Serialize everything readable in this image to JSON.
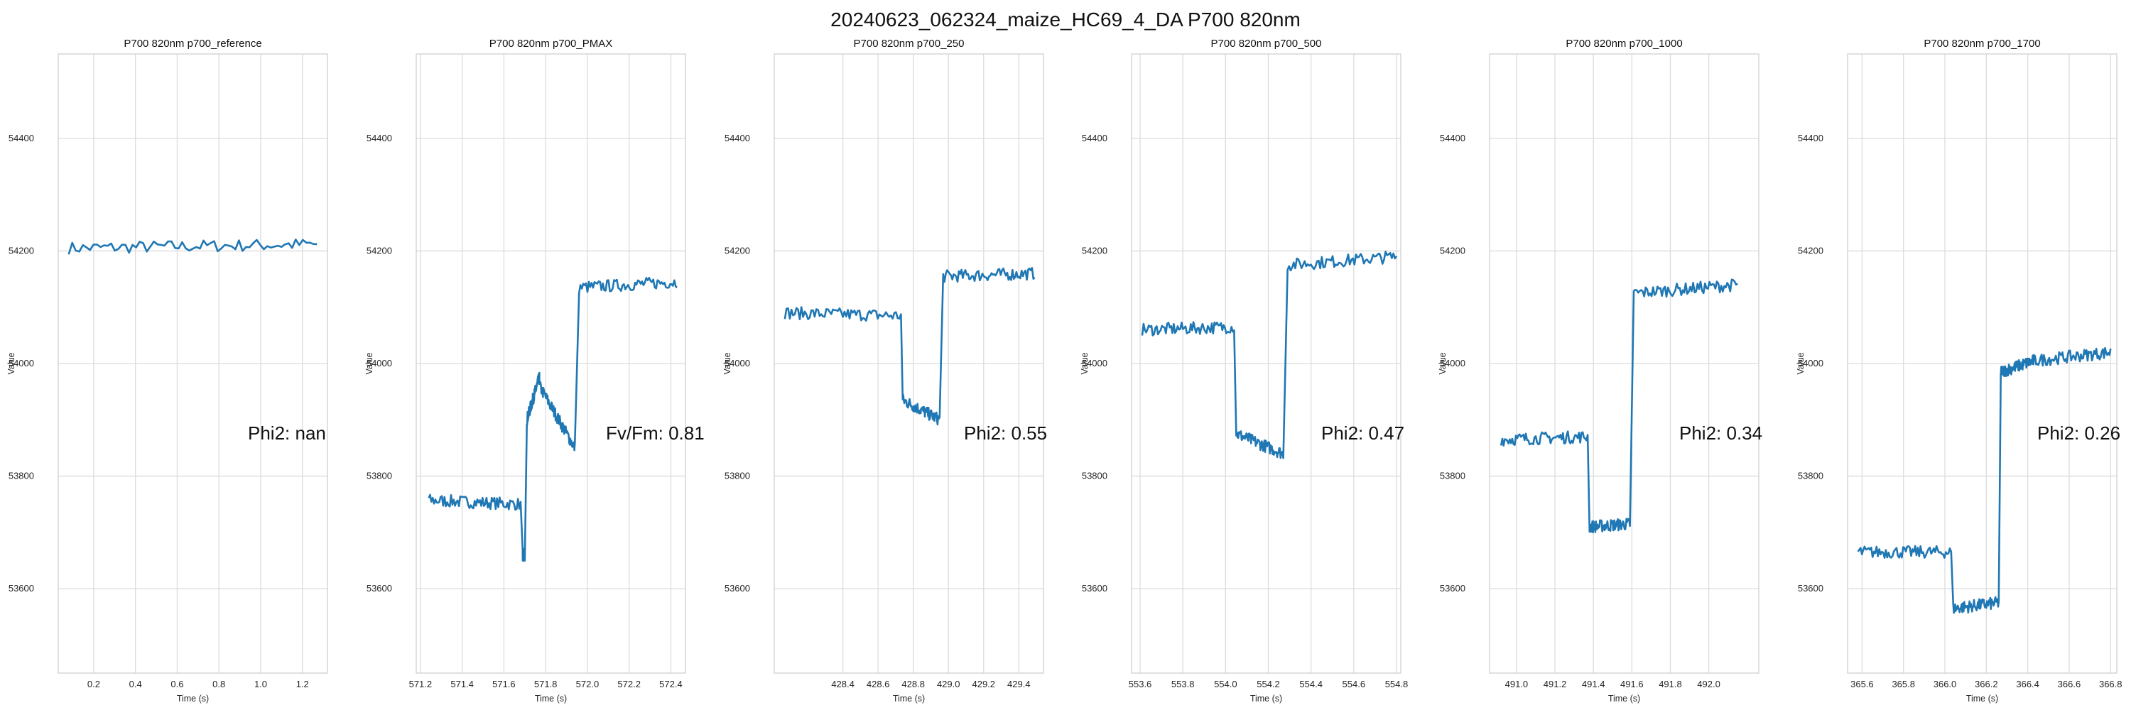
{
  "figure_title": "20240623_062324_maize_HC69_4_DA P700 820nm",
  "colors": {
    "series": "#1f77b4",
    "grid": "#dcdcdc"
  },
  "chart_data": [
    {
      "type": "line",
      "title": "P700 820nm p700_reference",
      "xlabel": "Time (s)",
      "ylabel": "Value",
      "xlim": [
        0.03,
        1.32
      ],
      "ylim": [
        53450,
        54550
      ],
      "xticks": [
        "0.2",
        "0.4",
        "0.6",
        "0.8",
        "1.0",
        "1.2"
      ],
      "yticks": [
        "53600",
        "53800",
        "54000",
        "54200",
        "54400"
      ],
      "annotation": "Phi2: nan",
      "grid": true,
      "segments": [
        {
          "x0": 0.08,
          "x1": 1.27,
          "y0": 54205,
          "y1": 54212
        }
      ]
    },
    {
      "type": "line",
      "title": "P700 820nm p700_PMAX",
      "xlabel": "Time (s)",
      "ylabel": "Value",
      "xlim": [
        571.18,
        572.47
      ],
      "ylim": [
        53450,
        54550
      ],
      "xticks": [
        "571.2",
        "571.4",
        "571.6",
        "571.8",
        "572.0",
        "572.2",
        "572.4"
      ],
      "yticks": [
        "53600",
        "53800",
        "54000",
        "54200",
        "54400"
      ],
      "annotation": "Fv/Fm: 0.81",
      "grid": true,
      "segments": [
        {
          "x0": 571.24,
          "x1": 571.68,
          "y0": 53757,
          "y1": 53750
        },
        {
          "x0": 571.69,
          "x1": 571.7,
          "y0": 53660,
          "y1": 53660
        },
        {
          "x0": 571.71,
          "x1": 571.77,
          "y0": 53900,
          "y1": 53975
        },
        {
          "x0": 571.77,
          "x1": 571.94,
          "y0": 53960,
          "y1": 53850
        },
        {
          "x0": 571.96,
          "x1": 572.43,
          "y0": 54135,
          "y1": 54145
        }
      ]
    },
    {
      "type": "line",
      "title": "P700 820nm p700_250",
      "xlabel": "Time (s)",
      "ylabel": "Value",
      "xlim": [
        428.01,
        429.54
      ],
      "ylim": [
        53450,
        54550
      ],
      "xticks": [
        "428.4",
        "428.6",
        "428.8",
        "429.0",
        "429.2",
        "429.4"
      ],
      "yticks": [
        "53600",
        "53800",
        "54000",
        "54200",
        "54400"
      ],
      "annotation": "Phi2: 0.55",
      "grid": true,
      "segments": [
        {
          "x0": 428.07,
          "x1": 428.73,
          "y0": 54090,
          "y1": 54085
        },
        {
          "x0": 428.74,
          "x1": 428.95,
          "y0": 53935,
          "y1": 53900
        },
        {
          "x0": 428.97,
          "x1": 429.49,
          "y0": 54155,
          "y1": 54160
        }
      ]
    },
    {
      "type": "line",
      "title": "P700 820nm p700_500",
      "xlabel": "Time (s)",
      "ylabel": "Value",
      "xlim": [
        553.56,
        554.82
      ],
      "ylim": [
        53450,
        54550
      ],
      "xticks": [
        "553.6",
        "553.8",
        "554.0",
        "554.2",
        "554.4",
        "554.6",
        "554.8"
      ],
      "yticks": [
        "53600",
        "53800",
        "54000",
        "54200",
        "54400"
      ],
      "annotation": "Phi2: 0.47",
      "grid": true,
      "segments": [
        {
          "x0": 553.61,
          "x1": 554.04,
          "y0": 54060,
          "y1": 54065
        },
        {
          "x0": 554.05,
          "x1": 554.27,
          "y0": 53875,
          "y1": 53840
        },
        {
          "x0": 554.29,
          "x1": 554.8,
          "y0": 54175,
          "y1": 54190
        }
      ]
    },
    {
      "type": "line",
      "title": "P700 820nm p700_1000",
      "xlabel": "Time (s)",
      "ylabel": "Value",
      "xlim": [
        490.86,
        492.26
      ],
      "ylim": [
        53450,
        54550
      ],
      "xticks": [
        "491.0",
        "491.2",
        "491.4",
        "491.6",
        "491.8",
        "492.0"
      ],
      "yticks": [
        "53600",
        "53800",
        "54000",
        "54200",
        "54400"
      ],
      "annotation": "Phi2: 0.34",
      "grid": true,
      "segments": [
        {
          "x0": 490.92,
          "x1": 491.37,
          "y0": 53865,
          "y1": 53870
        },
        {
          "x0": 491.38,
          "x1": 491.59,
          "y0": 53710,
          "y1": 53715
        },
        {
          "x0": 491.61,
          "x1": 492.15,
          "y0": 54125,
          "y1": 54140
        }
      ]
    },
    {
      "type": "line",
      "title": "P700 820nm p700_1700",
      "xlabel": "Time (s)",
      "ylabel": "Value",
      "xlim": [
        365.53,
        366.83
      ],
      "ylim": [
        53450,
        54550
      ],
      "xticks": [
        "365.6",
        "365.8",
        "366.0",
        "366.2",
        "366.4",
        "366.6",
        "366.8"
      ],
      "yticks": [
        "53600",
        "53800",
        "54000",
        "54200",
        "54400"
      ],
      "annotation": "Phi2: 0.26",
      "grid": true,
      "segments": [
        {
          "x0": 365.58,
          "x1": 366.03,
          "y0": 53665,
          "y1": 53665
        },
        {
          "x0": 366.04,
          "x1": 366.26,
          "y0": 53565,
          "y1": 53575
        },
        {
          "x0": 366.27,
          "x1": 366.43,
          "y0": 53985,
          "y1": 54005
        },
        {
          "x0": 366.43,
          "x1": 366.8,
          "y0": 54005,
          "y1": 54020
        }
      ]
    }
  ]
}
